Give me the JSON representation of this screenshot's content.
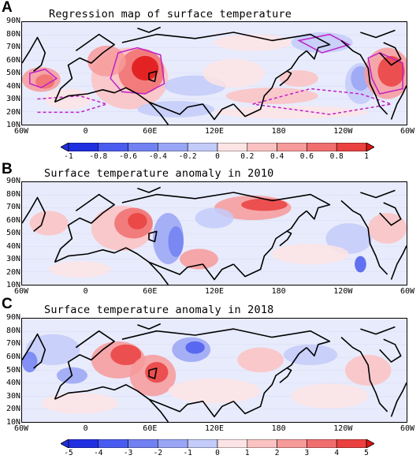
{
  "panels": [
    {
      "letter": "A",
      "title": "Regression map of surface temperature"
    },
    {
      "letter": "B",
      "title": "Surface temperature anomaly in 2010"
    },
    {
      "letter": "C",
      "title": "Surface temperature anomaly in 2018"
    }
  ],
  "lat_labels": [
    "90N",
    "80N",
    "70N",
    "60N",
    "50N",
    "40N",
    "30N",
    "20N",
    "10N"
  ],
  "lon_labels": [
    "60W",
    "0",
    "60E",
    "120E",
    "180",
    "120W",
    "60W"
  ],
  "colorbar_a": {
    "labels": [
      "-1",
      "-0.8",
      "-0.6",
      "-0.4",
      "-0.2",
      "0",
      "0.2",
      "0.4",
      "0.6",
      "0.8",
      "1"
    ]
  },
  "colorbar_c": {
    "labels": [
      "-5",
      "-4",
      "-3",
      "-2",
      "-1",
      "0",
      "1",
      "2",
      "3",
      "4",
      "5"
    ]
  },
  "colors": {
    "neg": [
      "#1f2fe0",
      "#4a5cef",
      "#7181f2",
      "#99a5f5",
      "#c3cbf9",
      "#e3e7fc"
    ],
    "pos": [
      "#fde4e4",
      "#fbc2c2",
      "#f79a9a",
      "#f16e6e",
      "#ea4040",
      "#e01414"
    ],
    "contour": "#c020c8",
    "coast": "#000000"
  }
}
